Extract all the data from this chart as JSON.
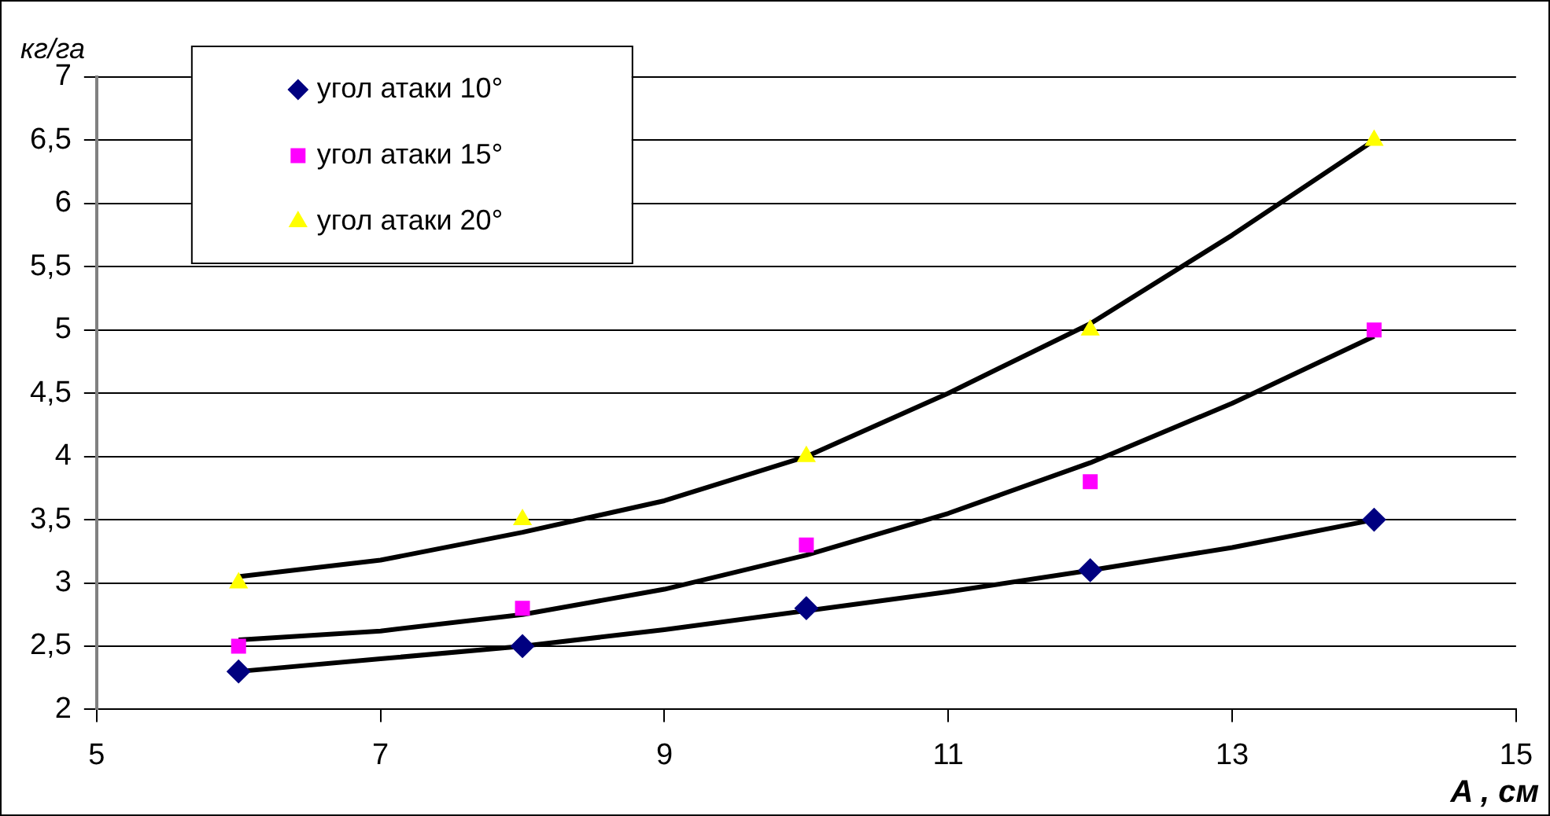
{
  "chart_data": {
    "type": "scatter",
    "xlabel": "A , см",
    "ylabel": "кг/га",
    "xlim": [
      5,
      15
    ],
    "xticks": [
      5,
      7,
      9,
      11,
      13,
      15
    ],
    "ylim": [
      2,
      7
    ],
    "yticks": [
      2,
      {
        "value": 2.5,
        "label": "2,5"
      },
      3,
      {
        "value": 3.5,
        "label": "3,5"
      },
      4,
      {
        "value": 4.5,
        "label": "4,5"
      },
      5,
      {
        "value": 5.5,
        "label": "5,5"
      },
      6,
      {
        "value": 6.5,
        "label": "6,5"
      },
      7
    ],
    "grid": "y",
    "legend": "top left",
    "series": [
      {
        "name": "угол атаки 10°",
        "color": "#000080",
        "marker": "diamond",
        "x": [
          6,
          8,
          10,
          12,
          14
        ],
        "values": [
          2.3,
          2.5,
          2.8,
          3.1,
          3.5
        ]
      },
      {
        "name": "угол атаки 15°",
        "color": "#ff00ff",
        "marker": "square",
        "x": [
          6,
          8,
          10,
          12,
          14
        ],
        "values": [
          2.5,
          2.8,
          3.3,
          3.8,
          5.0
        ]
      },
      {
        "name": "угол атаки 20°",
        "color": "#ffff00",
        "marker": "triangle",
        "x": [
          6,
          8,
          10,
          12,
          14
        ],
        "values": [
          3.0,
          3.5,
          4.0,
          5.0,
          6.5
        ]
      },
      {
        "type": "line",
        "color": "#000000",
        "marker": "none",
        "x": [
          6,
          7,
          8,
          9,
          10,
          11,
          12,
          13,
          14
        ],
        "values": [
          2.3,
          2.4,
          2.5,
          2.63,
          2.78,
          2.93,
          3.1,
          3.28,
          3.5
        ]
      },
      {
        "type": "line",
        "color": "#000000",
        "marker": "none",
        "x": [
          6,
          7,
          8,
          9,
          10,
          11,
          12,
          13,
          14
        ],
        "values": [
          2.55,
          2.62,
          2.75,
          2.95,
          3.22,
          3.55,
          3.95,
          4.42,
          4.95
        ]
      },
      {
        "type": "line",
        "color": "#000000",
        "marker": "none",
        "x": [
          6,
          7,
          8,
          9,
          10,
          11,
          12,
          13,
          14
        ],
        "values": [
          3.05,
          3.18,
          3.4,
          3.65,
          4.0,
          4.5,
          5.05,
          5.75,
          6.5
        ]
      }
    ]
  }
}
